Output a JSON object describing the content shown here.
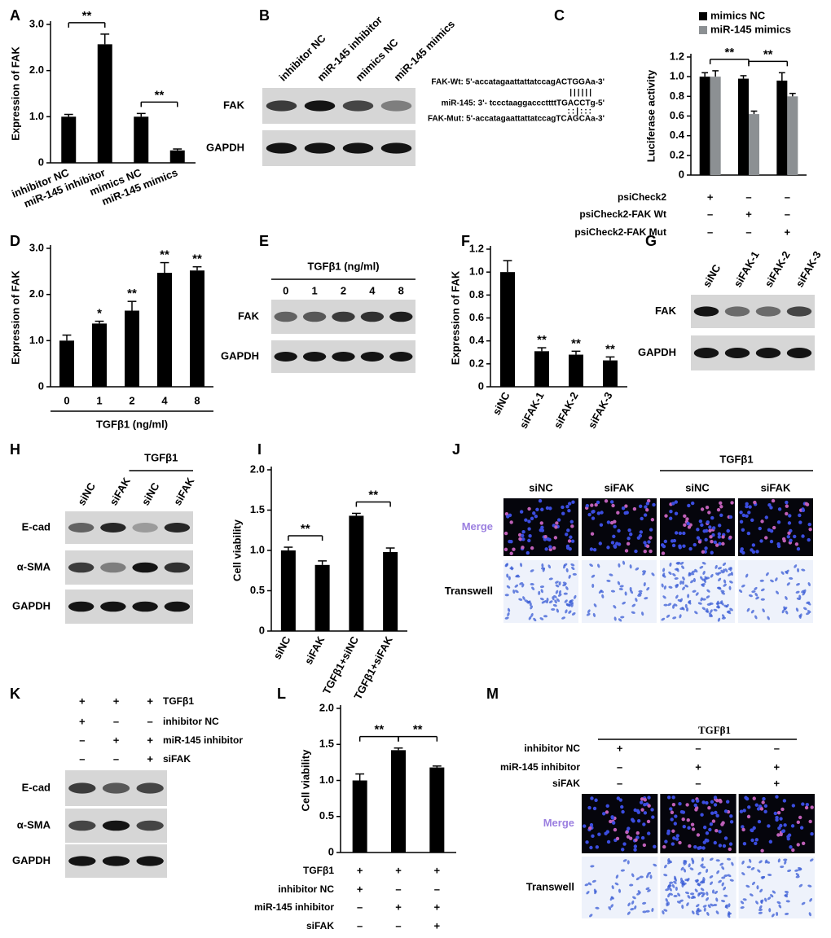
{
  "chart_data": [
    {
      "panel": "A",
      "type": "bar",
      "y_label": "Expression of FAK",
      "categories": [
        "inhibitor NC",
        "miR-145 inhibitor",
        "mimics NC",
        "miR-145 mimics"
      ],
      "values": [
        1.0,
        2.57,
        1.0,
        0.27
      ],
      "errors": [
        0.05,
        0.22,
        0.07,
        0.03
      ],
      "color": "#000000",
      "ylim": [
        0,
        3
      ],
      "yticks": [
        0,
        {
          "value": 1,
          "label": "1.0"
        },
        {
          "value": 2,
          "label": "2.0"
        },
        {
          "value": 3,
          "label": "3.0"
        }
      ],
      "significance": [
        {
          "label": "**",
          "between": [
            0,
            1
          ]
        },
        {
          "label": "**",
          "between": [
            2,
            3
          ]
        }
      ]
    },
    {
      "panel": "C",
      "type": "bar",
      "y_label": "Luciferase activity",
      "series": [
        {
          "name": "mimics NC",
          "color": "#000000",
          "values": [
            1.0,
            0.98,
            0.96
          ],
          "errors": [
            0.04,
            0.03,
            0.08
          ]
        },
        {
          "name": "miR-145 mimics",
          "color": "#8c9093",
          "values": [
            1.0,
            0.62,
            0.8
          ],
          "errors": [
            0.06,
            0.03,
            0.03
          ]
        }
      ],
      "ylim": [
        0,
        1.2
      ],
      "yticks": [
        0,
        0.2,
        0.4,
        0.6,
        0.8,
        {
          "value": 1,
          "label": "1.0"
        },
        1.2
      ],
      "significance": [
        {
          "label": "**",
          "between": [
            0,
            1
          ]
        },
        {
          "label": "**",
          "between": [
            1,
            2
          ]
        }
      ],
      "conditions": [
        {
          "name": "psiCheck2",
          "signs": [
            "+",
            "–",
            "–"
          ]
        },
        {
          "name": "psiCheck2-FAK Wt",
          "signs": [
            "–",
            "+",
            "–"
          ]
        },
        {
          "name": "psiCheck2-FAK Mut",
          "signs": [
            "–",
            "–",
            "+"
          ]
        }
      ],
      "sequences": [
        "FAK-Wt: 5'-accatagaattattatccagACTGGAa-3'",
        "miR-145: 3'- tccctaaggacccttttTGACCTg-5'",
        "FAK-Mut: 5'-accatagaattattatccagTCAGCAa-3'"
      ],
      "pairing": [
        "||||||",
        "::|:::"
      ]
    },
    {
      "panel": "D",
      "type": "bar",
      "y_label": "Expression of FAK",
      "x_label": "TGFβ1 (ng/ml)",
      "categories": [
        "0",
        "1",
        "2",
        "4",
        "8"
      ],
      "values": [
        1.0,
        1.37,
        1.65,
        2.47,
        2.52
      ],
      "errors": [
        0.12,
        0.05,
        0.2,
        0.22,
        0.08
      ],
      "color": "#000000",
      "ylim": [
        0,
        3
      ],
      "yticks": [
        0,
        {
          "value": 1,
          "label": "1.0"
        },
        {
          "value": 2,
          "label": "2.0"
        },
        {
          "value": 3,
          "label": "3.0"
        }
      ],
      "stars": [
        null,
        "*",
        "**",
        "**",
        "**"
      ]
    },
    {
      "panel": "F",
      "type": "bar",
      "y_label": "Expression of FAK",
      "categories": [
        "siNC",
        "siFAK-1",
        "siFAK-2",
        "siFAK-3"
      ],
      "values": [
        1.0,
        0.31,
        0.28,
        0.23
      ],
      "errors": [
        0.1,
        0.03,
        0.03,
        0.03
      ],
      "color": "#000000",
      "ylim": [
        0,
        1.2
      ],
      "yticks": [
        0,
        0.2,
        0.4,
        0.6,
        0.8,
        {
          "value": 1,
          "label": "1.0"
        },
        1.2
      ],
      "stars": [
        null,
        "**",
        "**",
        "**"
      ]
    },
    {
      "panel": "I",
      "type": "bar",
      "y_label": "Cell viability",
      "categories": [
        "siNC",
        "siFAK",
        "TGFβ1+siNC",
        "TGFβ1+siFAK"
      ],
      "values": [
        1.0,
        0.82,
        1.43,
        0.98
      ],
      "errors": [
        0.04,
        0.05,
        0.03,
        0.05
      ],
      "color": "#000000",
      "ylim": [
        0,
        2
      ],
      "yticks": [
        0,
        0.5,
        {
          "value": 1,
          "label": "1.0"
        },
        1.5,
        {
          "value": 2,
          "label": "2.0"
        }
      ],
      "significance": [
        {
          "label": "**",
          "between": [
            0,
            1
          ]
        },
        {
          "label": "**",
          "between": [
            2,
            3
          ]
        }
      ]
    },
    {
      "panel": "L",
      "type": "bar",
      "y_label": "Cell viability",
      "values": [
        1.0,
        1.42,
        1.18
      ],
      "errors": [
        0.09,
        0.03,
        0.02
      ],
      "color": "#000000",
      "ylim": [
        0,
        2
      ],
      "yticks": [
        0,
        0.5,
        {
          "value": 1,
          "label": "1.0"
        },
        1.5,
        {
          "value": 2,
          "label": "2.0"
        }
      ],
      "significance": [
        {
          "label": "**",
          "between": [
            0,
            1
          ]
        },
        {
          "label": "**",
          "between": [
            1,
            2
          ]
        }
      ],
      "conditions": [
        {
          "name": "TGFβ1",
          "signs": [
            "+",
            "+",
            "+"
          ]
        },
        {
          "name": "inhibitor NC",
          "signs": [
            "+",
            "–",
            "–"
          ]
        },
        {
          "name": "miR-145 inhibitor",
          "signs": [
            "–",
            "+",
            "+"
          ]
        },
        {
          "name": "siFAK",
          "signs": [
            "–",
            "–",
            "+"
          ]
        }
      ]
    }
  ],
  "blots": [
    {
      "panel": "B",
      "lanes": [
        "inhibitor NC",
        "miR-145 inhibitor",
        "mimics NC",
        "miR-145 mimics"
      ],
      "rows": [
        "FAK",
        "GAPDH"
      ]
    },
    {
      "panel": "E",
      "header": "TGFβ1 (ng/ml)",
      "lanes": [
        "0",
        "1",
        "2",
        "4",
        "8"
      ],
      "rows": [
        "FAK",
        "GAPDH"
      ]
    },
    {
      "panel": "G",
      "lanes": [
        "siNC",
        "siFAK-1",
        "siFAK-2",
        "siFAK-3"
      ],
      "rows": [
        "FAK",
        "GAPDH"
      ]
    },
    {
      "panel": "H",
      "group": {
        "label": "TGFβ1",
        "lanes": [
          2,
          3
        ]
      },
      "lanes": [
        "siNC",
        "siFAK",
        "siNC",
        "siFAK"
      ],
      "rows": [
        "E-cad",
        "α-SMA",
        "GAPDH"
      ]
    },
    {
      "panel": "K",
      "conditions": [
        {
          "name": "TGFβ1",
          "signs": [
            "+",
            "+",
            "+"
          ]
        },
        {
          "name": "inhibitor NC",
          "signs": [
            "+",
            "–",
            "–"
          ]
        },
        {
          "name": "miR-145 inhibitor",
          "signs": [
            "–",
            "+",
            "+"
          ]
        },
        {
          "name": "siFAK",
          "signs": [
            "–",
            "–",
            "+"
          ]
        }
      ],
      "rows": [
        "E-cad",
        "α-SMA",
        "GAPDH"
      ]
    }
  ],
  "micrographs": [
    {
      "panel": "J",
      "group": {
        "label": "TGFβ1",
        "columns": [
          2,
          3
        ]
      },
      "columns": [
        "siNC",
        "siFAK",
        "siNC",
        "siFAK"
      ],
      "rows": [
        "Merge",
        "Transwell"
      ]
    },
    {
      "panel": "M",
      "header": "TGFβ1",
      "conditions": [
        {
          "name": "inhibitor NC",
          "signs": [
            "+",
            "–",
            "–"
          ]
        },
        {
          "name": "miR-145 inhibitor",
          "signs": [
            "–",
            "+",
            "+"
          ]
        },
        {
          "name": "siFAK",
          "signs": [
            "–",
            "–",
            "+"
          ]
        }
      ],
      "rows": [
        "Merge",
        "Transwell"
      ]
    }
  ]
}
